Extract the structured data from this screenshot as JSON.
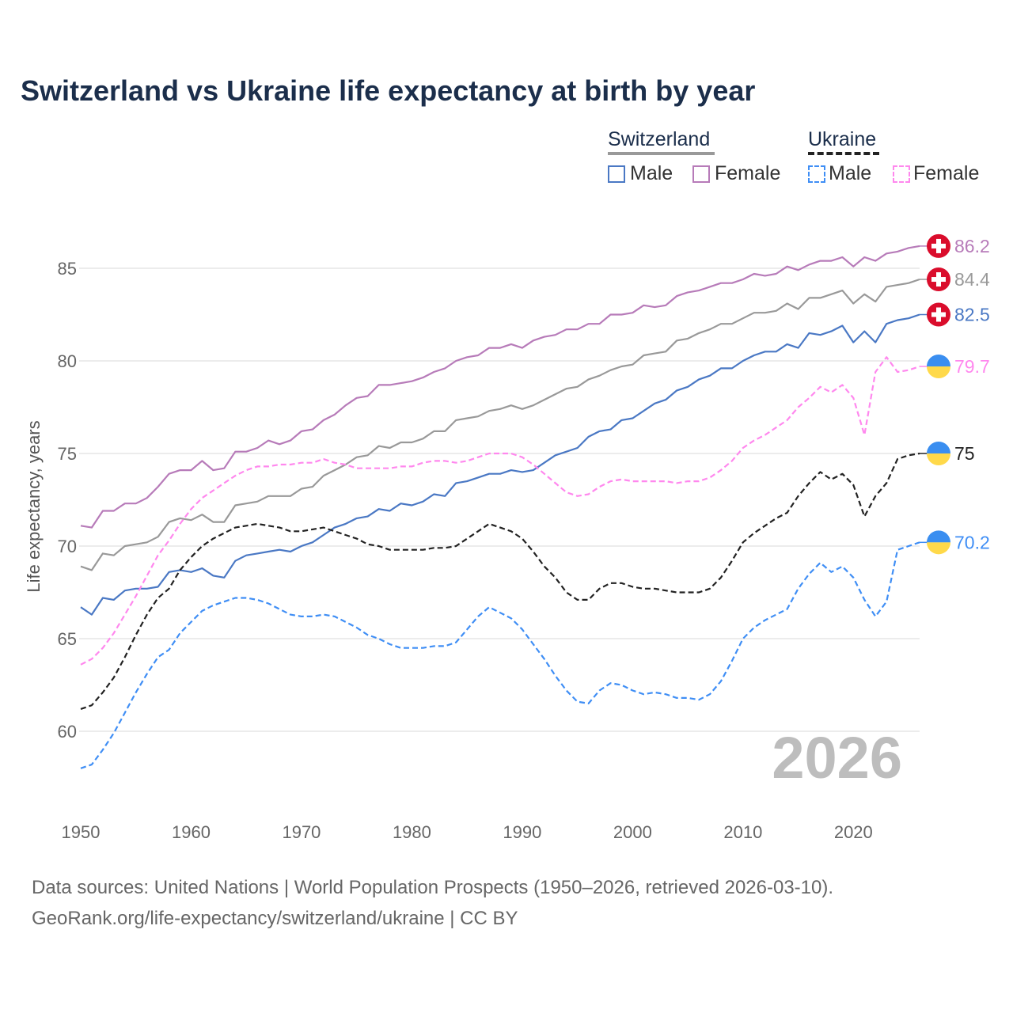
{
  "chart_data": {
    "type": "line",
    "title": "Switzerland vs Ukraine life expectancy at birth by year",
    "xlabel": "",
    "ylabel": "Life expectancy, years",
    "xlim": [
      1950,
      2026
    ],
    "ylim": [
      57,
      87.5
    ],
    "x_ticks": [
      "1950",
      "1960",
      "1970",
      "1980",
      "1990",
      "2000",
      "2010",
      "2020"
    ],
    "y_ticks": [
      "60",
      "65",
      "70",
      "75",
      "80",
      "85"
    ],
    "grid": true,
    "year_watermark": "2026",
    "legend": {
      "placement": "top-right",
      "groups": [
        {
          "name": "Switzerland",
          "items": [
            "Male",
            "Female"
          ]
        },
        {
          "name": "Ukraine",
          "items": [
            "Male",
            "Female"
          ]
        }
      ]
    },
    "start_year": 1950,
    "series": [
      {
        "name": "Switzerland Female",
        "country": "Switzerland",
        "color": "#b77bb9",
        "dashed": false,
        "end_label": "86.2",
        "values": [
          71.1,
          71.0,
          71.9,
          71.9,
          72.3,
          72.3,
          72.6,
          73.2,
          73.9,
          74.1,
          74.1,
          74.6,
          74.1,
          74.2,
          75.1,
          75.1,
          75.3,
          75.7,
          75.5,
          75.7,
          76.2,
          76.3,
          76.8,
          77.1,
          77.6,
          78.0,
          78.1,
          78.7,
          78.7,
          78.8,
          78.9,
          79.1,
          79.4,
          79.6,
          80.0,
          80.2,
          80.3,
          80.7,
          80.7,
          80.9,
          80.7,
          81.1,
          81.3,
          81.4,
          81.7,
          81.7,
          82.0,
          82.0,
          82.5,
          82.5,
          82.6,
          83.0,
          82.9,
          83.0,
          83.5,
          83.7,
          83.8,
          84.0,
          84.2,
          84.2,
          84.4,
          84.7,
          84.6,
          84.7,
          85.1,
          84.9,
          85.2,
          85.4,
          85.4,
          85.6,
          85.1,
          85.6,
          85.4,
          85.8,
          85.9,
          86.1,
          86.2
        ]
      },
      {
        "name": "Switzerland Total",
        "country": "Switzerland",
        "color": "#999999",
        "dashed": false,
        "end_label": "84.4",
        "values": [
          68.9,
          68.7,
          69.6,
          69.5,
          70.0,
          70.1,
          70.2,
          70.5,
          71.3,
          71.5,
          71.4,
          71.7,
          71.3,
          71.3,
          72.2,
          72.3,
          72.4,
          72.7,
          72.7,
          72.7,
          73.1,
          73.2,
          73.8,
          74.1,
          74.4,
          74.8,
          74.9,
          75.4,
          75.3,
          75.6,
          75.6,
          75.8,
          76.2,
          76.2,
          76.8,
          76.9,
          77.0,
          77.3,
          77.4,
          77.6,
          77.4,
          77.6,
          77.9,
          78.2,
          78.5,
          78.6,
          79.0,
          79.2,
          79.5,
          79.7,
          79.8,
          80.3,
          80.4,
          80.5,
          81.1,
          81.2,
          81.5,
          81.7,
          82.0,
          82.0,
          82.3,
          82.6,
          82.6,
          82.7,
          83.1,
          82.8,
          83.4,
          83.4,
          83.6,
          83.8,
          83.1,
          83.6,
          83.2,
          84.0,
          84.1,
          84.2,
          84.4
        ]
      },
      {
        "name": "Switzerland Male",
        "country": "Switzerland",
        "color": "#4a78c4",
        "dashed": false,
        "end_label": "82.5",
        "values": [
          66.7,
          66.3,
          67.2,
          67.1,
          67.6,
          67.7,
          67.7,
          67.8,
          68.6,
          68.7,
          68.6,
          68.8,
          68.4,
          68.3,
          69.2,
          69.5,
          69.6,
          69.7,
          69.8,
          69.7,
          70.0,
          70.2,
          70.6,
          71.0,
          71.2,
          71.5,
          71.6,
          72.0,
          71.9,
          72.3,
          72.2,
          72.4,
          72.8,
          72.7,
          73.4,
          73.5,
          73.7,
          73.9,
          73.9,
          74.1,
          74.0,
          74.1,
          74.5,
          74.9,
          75.1,
          75.3,
          75.9,
          76.2,
          76.3,
          76.8,
          76.9,
          77.3,
          77.7,
          77.9,
          78.4,
          78.6,
          79.0,
          79.2,
          79.6,
          79.6,
          80.0,
          80.3,
          80.5,
          80.5,
          80.9,
          80.7,
          81.5,
          81.4,
          81.6,
          81.9,
          81.0,
          81.6,
          81.0,
          82.0,
          82.2,
          82.3,
          82.5
        ]
      },
      {
        "name": "Ukraine Female",
        "country": "Ukraine",
        "color": "#ff88ee",
        "dashed": true,
        "end_label": "79.7",
        "values": [
          63.6,
          63.9,
          64.5,
          65.3,
          66.3,
          67.3,
          68.4,
          69.5,
          70.3,
          71.2,
          72.0,
          72.6,
          73.0,
          73.4,
          73.8,
          74.1,
          74.3,
          74.3,
          74.4,
          74.4,
          74.5,
          74.5,
          74.7,
          74.5,
          74.4,
          74.2,
          74.2,
          74.2,
          74.2,
          74.3,
          74.3,
          74.5,
          74.6,
          74.6,
          74.5,
          74.6,
          74.8,
          75.0,
          75.0,
          75.0,
          74.8,
          74.4,
          73.9,
          73.4,
          72.9,
          72.7,
          72.8,
          73.2,
          73.5,
          73.6,
          73.5,
          73.5,
          73.5,
          73.5,
          73.4,
          73.5,
          73.5,
          73.7,
          74.1,
          74.6,
          75.3,
          75.7,
          76.0,
          76.4,
          76.8,
          77.5,
          78.0,
          78.6,
          78.3,
          78.7,
          78.0,
          76.0,
          79.4,
          80.2,
          79.4,
          79.5,
          79.7
        ]
      },
      {
        "name": "Ukraine Total",
        "country": "Ukraine",
        "color": "#222222",
        "dashed": true,
        "end_label": "75",
        "values": [
          61.2,
          61.4,
          62.1,
          62.9,
          64.0,
          65.2,
          66.3,
          67.2,
          67.7,
          68.7,
          69.4,
          70.0,
          70.4,
          70.7,
          71.0,
          71.1,
          71.2,
          71.1,
          71.0,
          70.8,
          70.8,
          70.9,
          71.0,
          70.8,
          70.6,
          70.4,
          70.1,
          70.0,
          69.8,
          69.8,
          69.8,
          69.8,
          69.9,
          69.9,
          70.0,
          70.4,
          70.8,
          71.2,
          71.0,
          70.8,
          70.4,
          69.7,
          68.9,
          68.3,
          67.5,
          67.1,
          67.1,
          67.7,
          68.0,
          68.0,
          67.8,
          67.7,
          67.7,
          67.6,
          67.5,
          67.5,
          67.5,
          67.7,
          68.3,
          69.2,
          70.2,
          70.7,
          71.1,
          71.5,
          71.8,
          72.7,
          73.4,
          74.0,
          73.6,
          73.9,
          73.3,
          71.6,
          72.7,
          73.4,
          74.7,
          74.9,
          75.0
        ]
      },
      {
        "name": "Ukraine Male",
        "country": "Ukraine",
        "color": "#3f8ef5",
        "dashed": true,
        "end_label": "70.2",
        "values": [
          58.0,
          58.2,
          59.0,
          59.9,
          61.0,
          62.1,
          63.1,
          64.0,
          64.4,
          65.3,
          65.9,
          66.5,
          66.8,
          67.0,
          67.2,
          67.2,
          67.1,
          66.9,
          66.6,
          66.3,
          66.2,
          66.2,
          66.3,
          66.2,
          65.9,
          65.6,
          65.2,
          65.0,
          64.7,
          64.5,
          64.5,
          64.5,
          64.6,
          64.6,
          64.8,
          65.5,
          66.2,
          66.7,
          66.4,
          66.1,
          65.5,
          64.7,
          63.9,
          63.0,
          62.2,
          61.6,
          61.5,
          62.2,
          62.6,
          62.5,
          62.2,
          62.0,
          62.1,
          62.0,
          61.8,
          61.8,
          61.7,
          62.0,
          62.7,
          63.8,
          65.0,
          65.6,
          66.0,
          66.3,
          66.6,
          67.7,
          68.5,
          69.1,
          68.6,
          68.9,
          68.3,
          67.1,
          66.2,
          67.0,
          69.8,
          70.0,
          70.2
        ]
      }
    ],
    "colors": {
      "title": "#1b2e4b",
      "swiss_flag": "#da0d2c",
      "ukraine_blue": "#3a8ef0",
      "ukraine_yellow": "#ffd94a"
    }
  },
  "legend_labels": {
    "switzerland": "Switzerland",
    "ukraine": "Ukraine",
    "male": "Male",
    "female": "Female"
  },
  "footer": {
    "line1": "Data sources: United Nations | World Population Prospects (1950–2026, retrieved 2026-03-10).",
    "line2": "GeoRank.org/life-expectancy/switzerland/ukraine | CC BY"
  }
}
